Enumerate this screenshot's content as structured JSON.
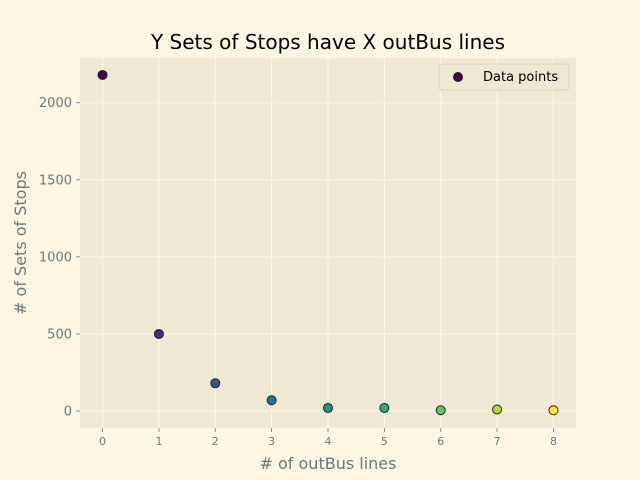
{
  "chart_data": {
    "type": "scatter",
    "title": "Y Sets of Stops have X outBus lines",
    "xlabel": "# of outBus lines",
    "ylabel": "# of Sets of Stops",
    "xlim": [
      -0.4,
      8.4
    ],
    "ylim": [
      -110,
      2290
    ],
    "xticks": [
      0,
      1,
      2,
      3,
      4,
      5,
      6,
      7,
      8
    ],
    "yticks": [
      0,
      500,
      1000,
      1500,
      2000
    ],
    "grid": true,
    "legend": {
      "placement": "top-right",
      "entries": [
        "Data points"
      ]
    },
    "series": [
      {
        "name": "Data points",
        "x": [
          0,
          1,
          2,
          3,
          4,
          5,
          6,
          7,
          8
        ],
        "y": [
          2180,
          500,
          180,
          70,
          20,
          20,
          5,
          10,
          5
        ],
        "colors": [
          "#440154",
          "#472d7b",
          "#3b528b",
          "#2c728e",
          "#21918c",
          "#28ae80",
          "#5ec962",
          "#addc30",
          "#fde725"
        ]
      }
    ]
  },
  "colors": {
    "figure_background": "#fdf6e3",
    "axes_background": "#eee8d5",
    "grid": "#fdf6e3",
    "text_muted": "#657b83",
    "marker_edge": "#222222"
  }
}
